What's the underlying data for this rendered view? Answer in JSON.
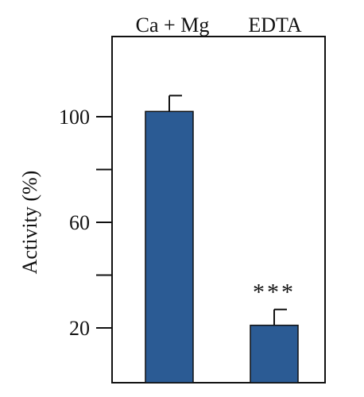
{
  "chart_data": {
    "type": "bar",
    "categories": [
      "Ca + Mg",
      "EDTA"
    ],
    "values": [
      102,
      21
    ],
    "errors": [
      6,
      6
    ],
    "ylabel": "Activity (%)",
    "yticks_labeled": [
      20,
      60,
      100
    ],
    "yticks_all": [
      20,
      40,
      60,
      80,
      100
    ],
    "ylim": [
      0,
      134
    ],
    "annotations": [
      {
        "category": "EDTA",
        "text": "***"
      }
    ],
    "bar_color": "#2b5b94",
    "category_labels_position": "top",
    "grid": false,
    "legend": "none"
  }
}
